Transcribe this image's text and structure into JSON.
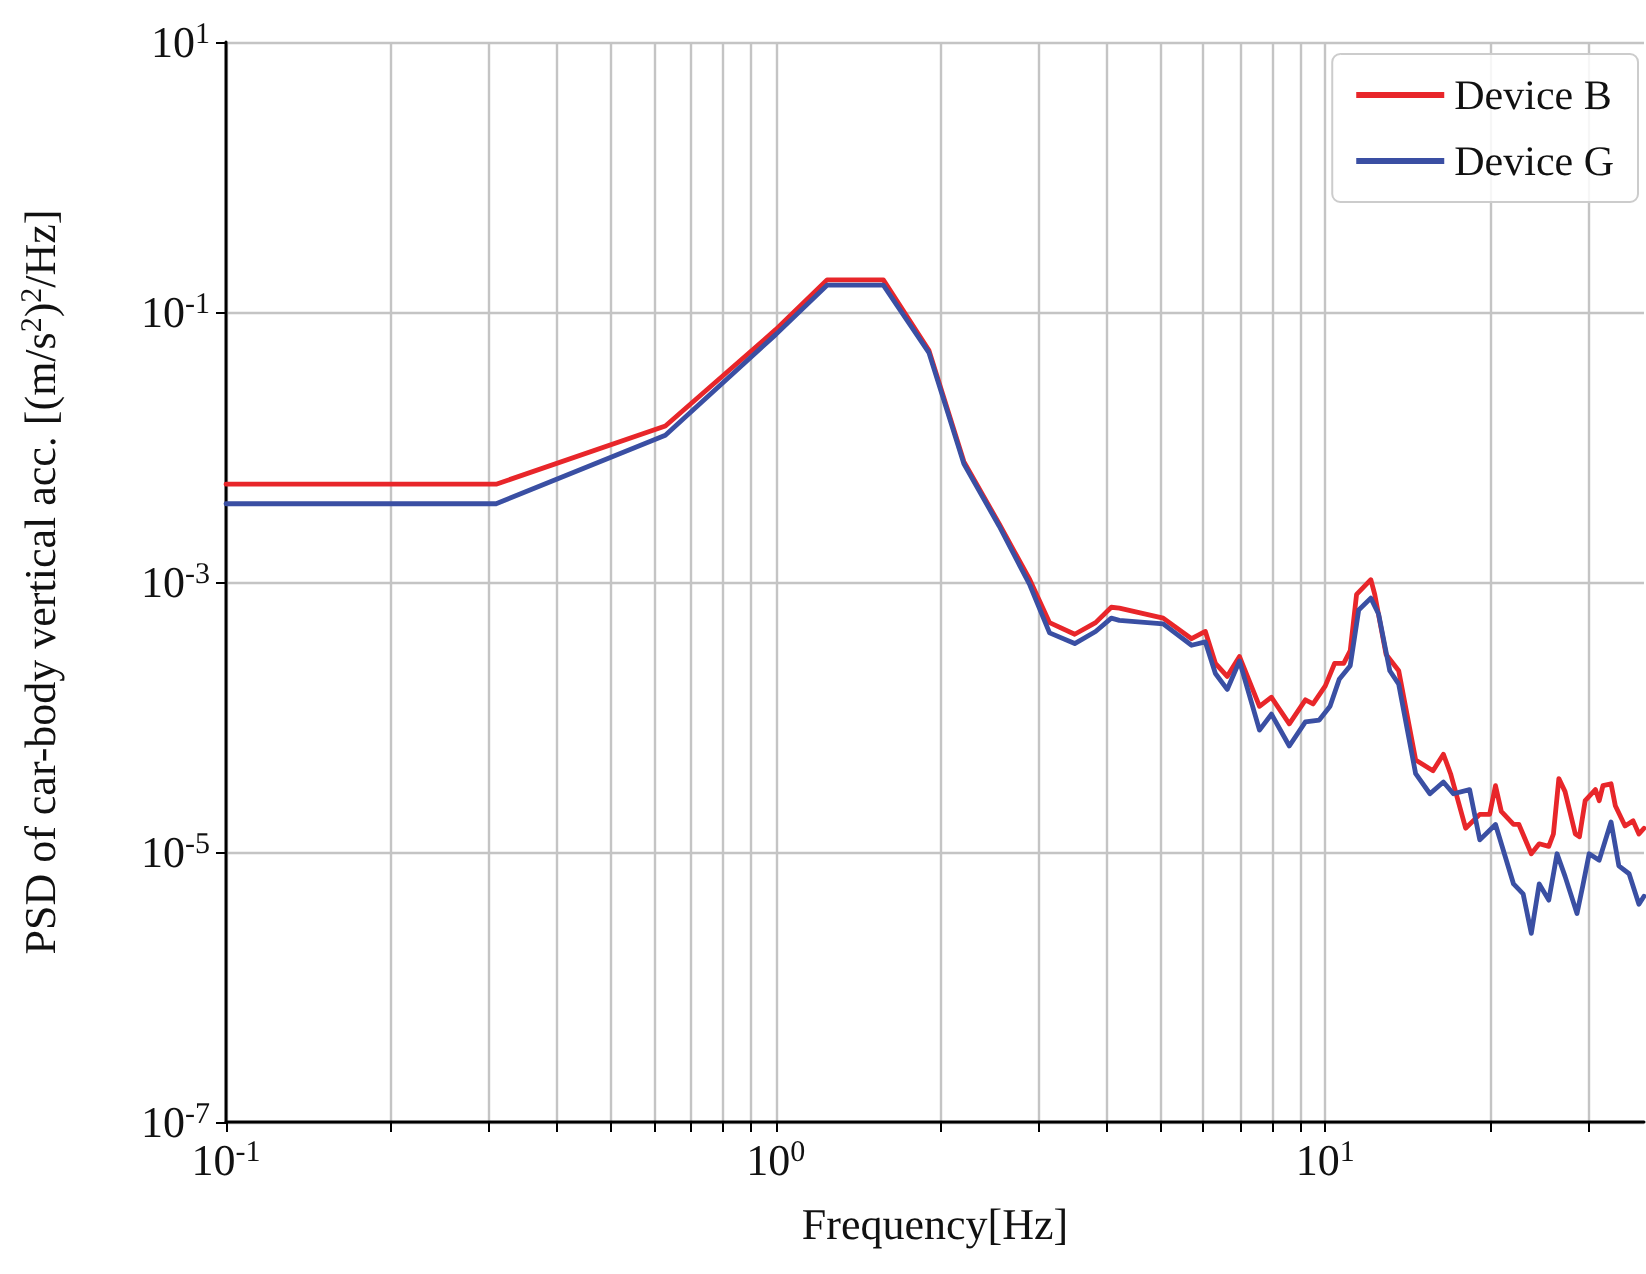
{
  "chart_data": {
    "type": "line",
    "xlabel": "Frequency[Hz]",
    "ylabel": "PSD of car-body vertical acc. [(m/s$^{2}$)$^{2}$/Hz]",
    "log": "xy",
    "grid": true,
    "legend": "top right",
    "line_style": "solid",
    "marker": "none",
    "xlim": [
      0.1,
      38
    ],
    "ylim": [
      1e-07,
      10
    ],
    "xticks": [
      {
        "value": 0.1,
        "label": "10$^{-1}$"
      },
      {
        "value": 0.2,
        "label": null
      },
      {
        "value": 0.3,
        "label": null
      },
      {
        "value": 0.4,
        "label": null
      },
      {
        "value": 0.5,
        "label": null
      },
      {
        "value": 0.6,
        "label": null
      },
      {
        "value": 0.7,
        "label": null
      },
      {
        "value": 0.8,
        "label": null
      },
      {
        "value": 0.9,
        "label": null
      },
      {
        "value": 1,
        "label": "10$^{0}$"
      },
      {
        "value": 2,
        "label": null
      },
      {
        "value": 3,
        "label": null
      },
      {
        "value": 4,
        "label": null
      },
      {
        "value": 5,
        "label": null
      },
      {
        "value": 6,
        "label": null
      },
      {
        "value": 7,
        "label": null
      },
      {
        "value": 8,
        "label": null
      },
      {
        "value": 9,
        "label": null
      },
      {
        "value": 10,
        "label": "10$^{1}$"
      },
      {
        "value": 20,
        "label": null
      },
      {
        "value": 30,
        "label": null
      }
    ],
    "yticks": [
      {
        "value": 1e-07,
        "label": "10$^{-7}$"
      },
      {
        "value": 1e-05,
        "label": "10$^{-5}$"
      },
      {
        "value": 0.001,
        "label": "10$^{-3}$"
      },
      {
        "value": 0.1,
        "label": "10$^{-1}$"
      },
      {
        "value": 10,
        "label": "10$^{1}$"
      }
    ],
    "series": [
      {
        "name": "Device B",
        "color": "#e8262a",
        "x": [
          0.1,
          0.31,
          0.63,
          1.0,
          1.24,
          1.57,
          1.9,
          2.2,
          2.55,
          2.9,
          3.15,
          3.5,
          3.82,
          4.08,
          4.22,
          5.07,
          5.71,
          6.05,
          6.31,
          6.63,
          6.98,
          7.59,
          7.98,
          8.6,
          9.2,
          9.5,
          10.0,
          10.4,
          10.8,
          11.1,
          11.4,
          12.1,
          12.3,
          12.9,
          13.6,
          14.6,
          15.7,
          16.4,
          16.9,
          18.0,
          19.1,
          19.9,
          20.4,
          20.9,
          22.0,
          22.5,
          23.7,
          24.5,
          25.5,
          26.0,
          26.6,
          27.3,
          28.5,
          29.0,
          29.7,
          31.0,
          31.5,
          32.0,
          33.1,
          33.7,
          35.1,
          36.3,
          37.2,
          38
        ],
        "values": [
          0.0053,
          0.0053,
          0.0143,
          0.074,
          0.173,
          0.173,
          0.052,
          0.0078,
          0.0027,
          0.00104,
          0.0005,
          0.00041,
          0.0005,
          0.00065,
          0.00064,
          0.00054,
          0.00038,
          0.00043,
          0.00025,
          0.0002,
          0.00028,
          0.00012,
          0.00014,
          8.9e-05,
          0.000134,
          0.000125,
          0.00017,
          0.00025,
          0.00025,
          0.00031,
          0.00081,
          0.00104,
          0.00081,
          0.00029,
          0.00022,
          4.8e-05,
          4e-05,
          5.3e-05,
          3.8e-05,
          1.5e-05,
          1.9e-05,
          1.9e-05,
          3.1e-05,
          2e-05,
          1.6e-05,
          1.6e-05,
          9.7e-06,
          1.15e-05,
          1.1e-05,
          1.36e-05,
          3.5e-05,
          2.8e-05,
          1.36e-05,
          1.3e-05,
          2.4e-05,
          2.9e-05,
          2.4e-05,
          3.1e-05,
          3.2e-05,
          2.2e-05,
          1.56e-05,
          1.7e-05,
          1.36e-05,
          1.5e-05
        ]
      },
      {
        "name": "Device G",
        "color": "#3a4fa3",
        "x": [
          0.1,
          0.31,
          0.63,
          1.0,
          1.24,
          1.57,
          1.9,
          2.2,
          2.55,
          2.9,
          3.15,
          3.5,
          3.82,
          4.08,
          4.22,
          5.07,
          5.71,
          6.05,
          6.31,
          6.63,
          6.98,
          7.59,
          7.98,
          8.6,
          9.2,
          9.75,
          10.2,
          10.6,
          11.1,
          11.5,
          12.1,
          12.5,
          13.1,
          13.6,
          14.6,
          15.5,
          16.4,
          17.1,
          18.3,
          19.1,
          20.4,
          22.0,
          22.9,
          23.7,
          24.5,
          25.5,
          26.4,
          27.3,
          28.7,
          29.4,
          30.2,
          31.5,
          33.1,
          34.2,
          35.7,
          37.2,
          38
        ],
        "values": [
          0.0038,
          0.0038,
          0.0122,
          0.068,
          0.158,
          0.158,
          0.05,
          0.0075,
          0.0026,
          0.00095,
          0.00042,
          0.00035,
          0.00043,
          0.00054,
          0.00052,
          0.00049,
          0.00034,
          0.00036,
          0.00021,
          0.00016,
          0.00026,
          8e-05,
          0.000105,
          6.1e-05,
          9.2e-05,
          9.5e-05,
          0.00012,
          0.00019,
          0.00024,
          0.00062,
          0.00076,
          0.00058,
          0.00022,
          0.000175,
          3.8e-05,
          2.7e-05,
          3.3e-05,
          2.7e-05,
          2.9e-05,
          1.23e-05,
          1.6e-05,
          5.8e-06,
          4.9e-06,
          2.5e-06,
          5.8e-06,
          4.4e-06,
          9.7e-06,
          6.6e-06,
          3.5e-06,
          5.6e-06,
          9.7e-06,
          8.7e-06,
          1.67e-05,
          7.9e-06,
          6.9e-06,
          4.1e-06,
          4.7e-06
        ]
      }
    ]
  }
}
